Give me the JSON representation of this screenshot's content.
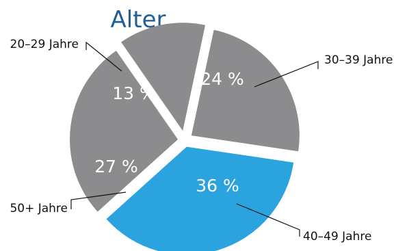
{
  "chart_data": {
    "type": "pie",
    "title": "Alter",
    "categories": [
      "30–39 Jahre",
      "40–49 Jahre",
      "50+ Jahre",
      "20–29 Jahre"
    ],
    "values": [
      24,
      36,
      27,
      13
    ],
    "value_labels": [
      "24 %",
      "36 %",
      "27 %",
      "13 %"
    ],
    "unit": "%",
    "exploded": true,
    "highlight": "40–49 Jahre",
    "colors": {
      "default": "#8c8c8e",
      "highlight": "#2aa3de",
      "title": "#1f5f9a",
      "label_text": "#ffffff",
      "category_text": "#111111"
    }
  }
}
